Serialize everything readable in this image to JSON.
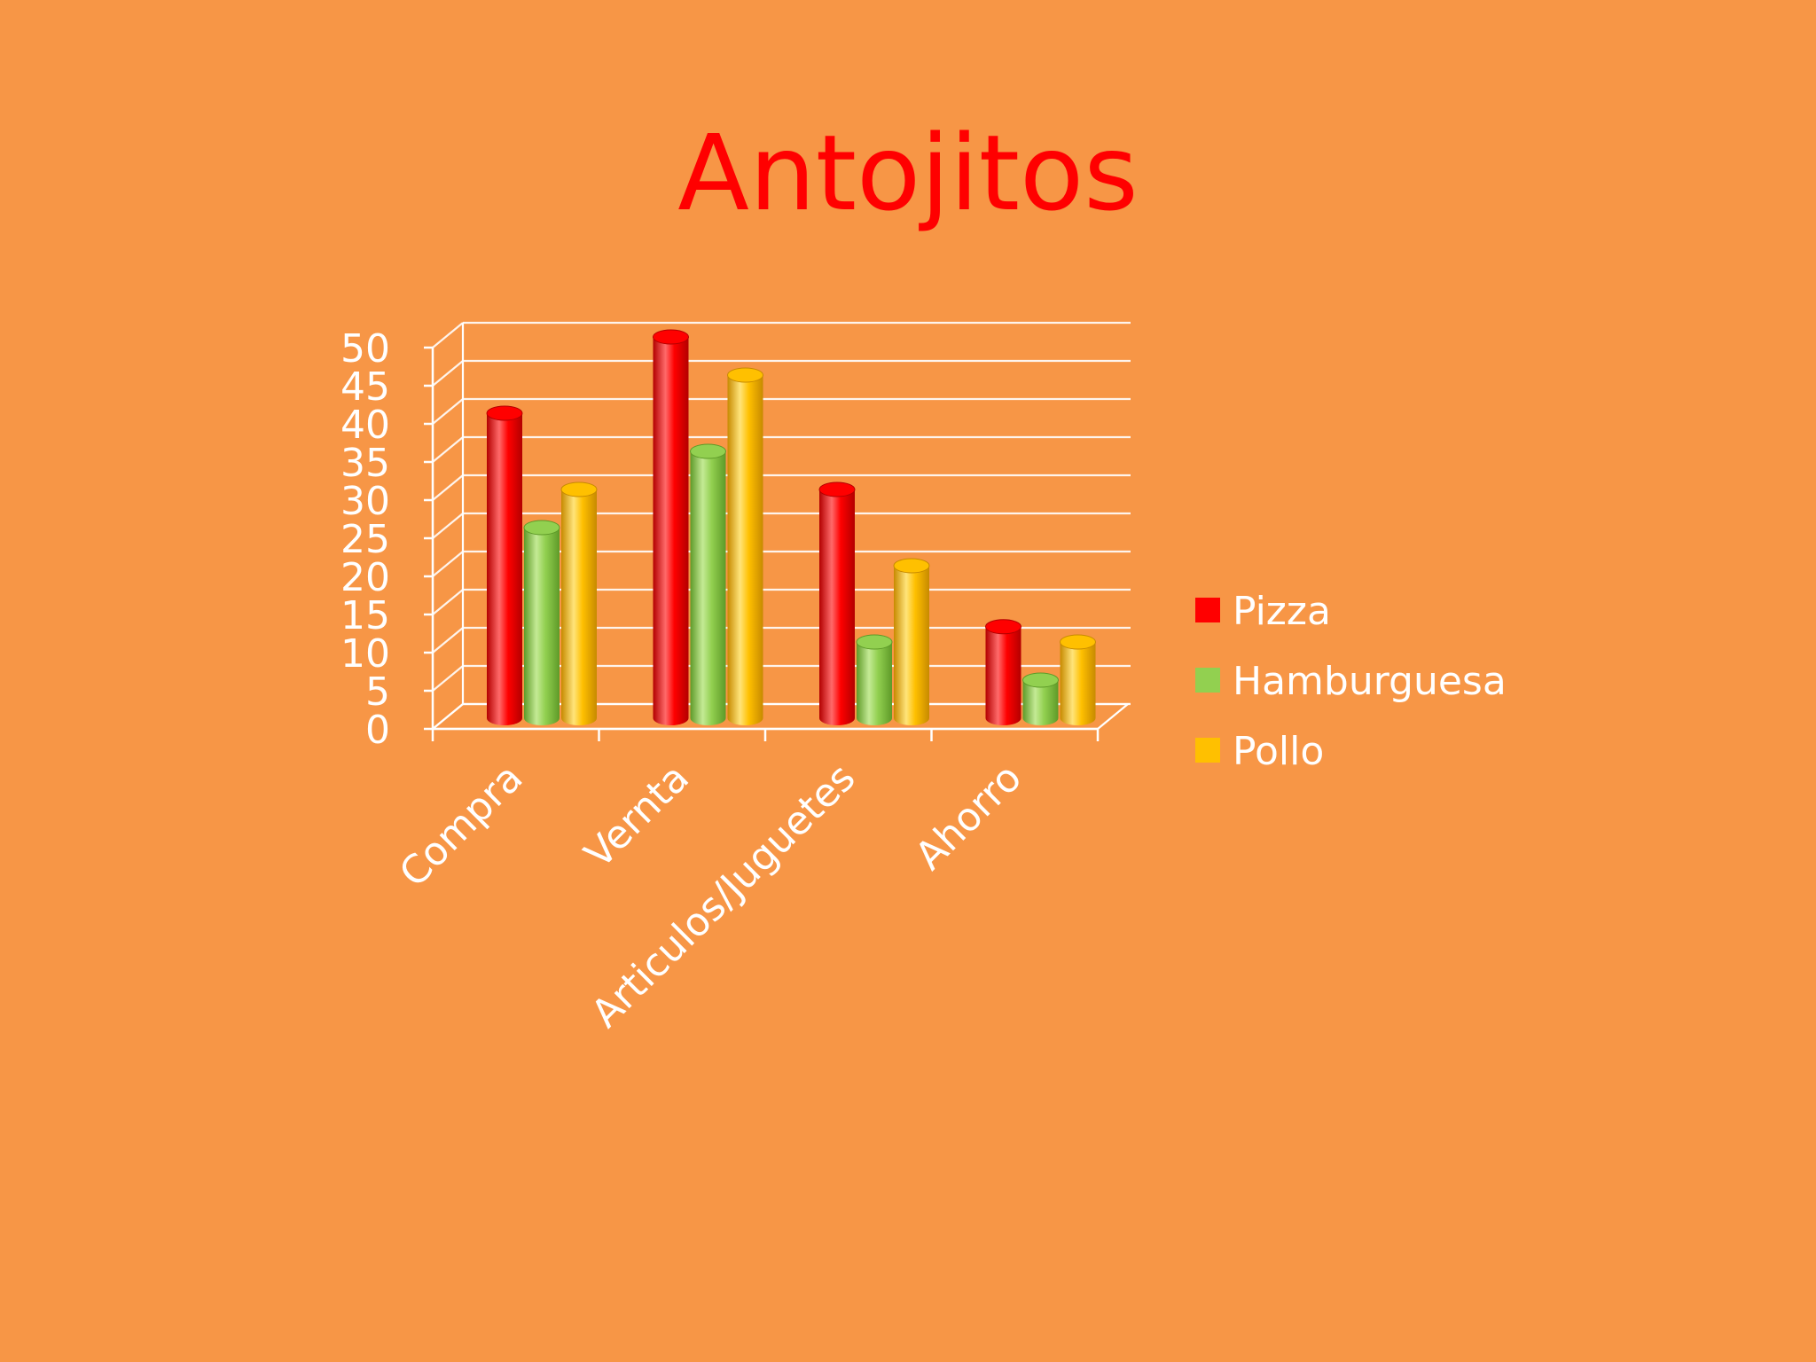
{
  "slide": {
    "title": "Antojitos"
  },
  "colors": {
    "background": "#F79646",
    "title": "#FF0000",
    "axis_and_text": "#FFFFFF"
  },
  "chart_data": {
    "type": "bar",
    "style": "3d-cylinder",
    "categories": [
      "Compra",
      "Vernta",
      "Articulos/Juguetes",
      "Ahorro"
    ],
    "series": [
      {
        "name": "Pizza",
        "values": [
          40,
          50,
          30,
          12
        ],
        "color": "#FF0000",
        "dark": "#B30000",
        "light": "#FF6A6A"
      },
      {
        "name": "Hamburguesa",
        "values": [
          25,
          35,
          10,
          5
        ],
        "color": "#92D050",
        "dark": "#5E9A28",
        "light": "#C4EA95"
      },
      {
        "name": "Pollo",
        "values": [
          30,
          45,
          20,
          10
        ],
        "color": "#FFC000",
        "dark": "#C78A00",
        "light": "#FFE47A"
      }
    ],
    "y_ticks": [
      "0",
      "5",
      "10",
      "15",
      "20",
      "25",
      "30",
      "35",
      "40",
      "45",
      "50"
    ],
    "ylim": [
      0,
      50
    ],
    "grid": true,
    "legend_position": "right"
  }
}
